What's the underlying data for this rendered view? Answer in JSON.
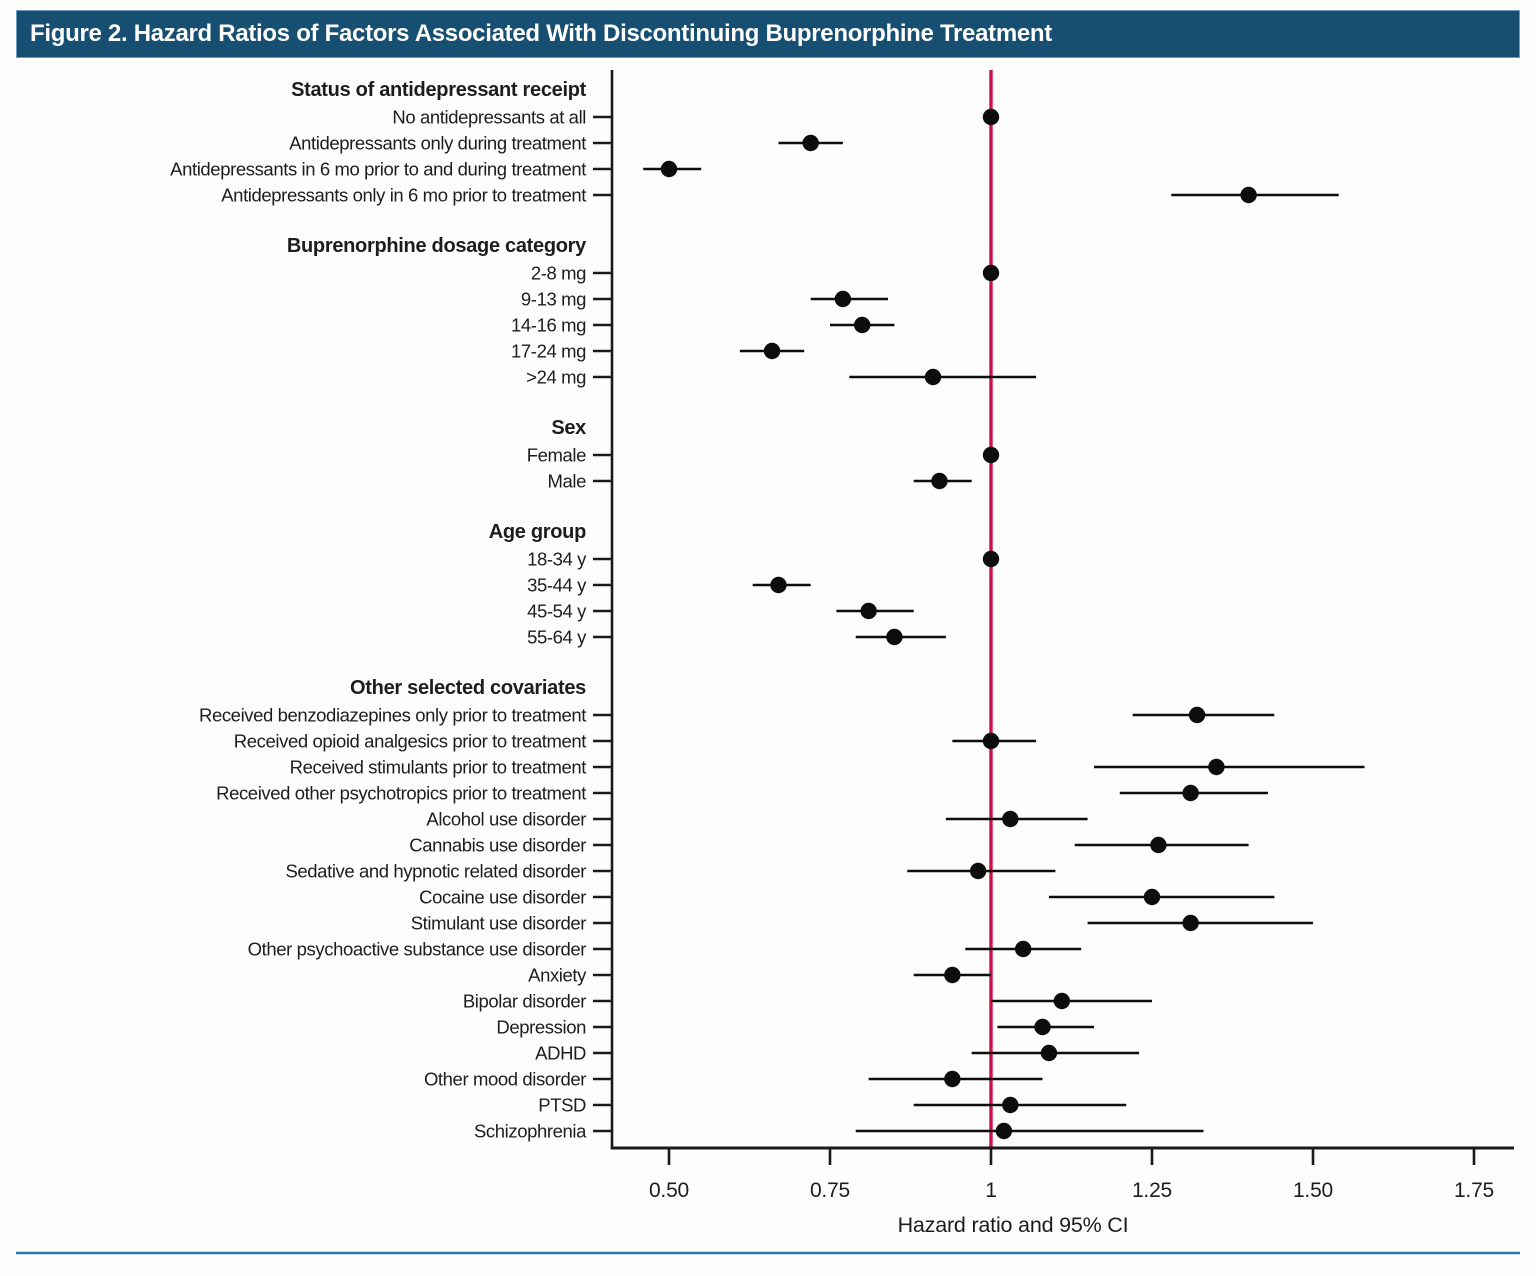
{
  "figure": {
    "title_bar": {
      "text": "Figure 2. Hazard Ratios of Factors Associated With Discontinuing Buprenorphine Treatment",
      "background": "#164f72",
      "text_color": "#ffffff"
    },
    "footer_rule_color": "#2b7ab2"
  },
  "chart_data": {
    "type": "forest",
    "title": "Hazard Ratios of Factors Associated With Discontinuing Buprenorphine Treatment",
    "xlabel": "Hazard ratio and 95% CI",
    "x_tick_labels": [
      "0.50",
      "0.75",
      "1",
      "1.25",
      "1.50",
      "1.75"
    ],
    "x_tick_values": [
      0.5,
      0.75,
      1.0,
      1.25,
      1.5,
      1.75
    ],
    "xlim": [
      0.41,
      1.81
    ],
    "grid": false,
    "legend": null,
    "reference_line": 1.0,
    "colors": {
      "reference_line": "#ce0f4b",
      "points": "#0d0d0d",
      "axis": "#1a1a1a"
    },
    "groups": [
      {
        "header": "Status of antidepressant receipt",
        "rows": [
          {
            "label": "No antidepressants at all",
            "hr": 1.0,
            "ci": null,
            "reference": true
          },
          {
            "label": "Antidepressants only during treatment",
            "hr": 0.72,
            "ci": [
              0.67,
              0.77
            ]
          },
          {
            "label": "Antidepressants in 6 mo prior to and during treatment",
            "hr": 0.5,
            "ci": [
              0.46,
              0.55
            ]
          },
          {
            "label": "Antidepressants only in 6 mo prior to treatment",
            "hr": 1.4,
            "ci": [
              1.28,
              1.54
            ]
          }
        ]
      },
      {
        "header": "Buprenorphine dosage category",
        "rows": [
          {
            "label": "2-8 mg",
            "hr": 1.0,
            "ci": null,
            "reference": true
          },
          {
            "label": "9-13 mg",
            "hr": 0.77,
            "ci": [
              0.72,
              0.84
            ]
          },
          {
            "label": "14-16 mg",
            "hr": 0.8,
            "ci": [
              0.75,
              0.85
            ]
          },
          {
            "label": "17-24 mg",
            "hr": 0.66,
            "ci": [
              0.61,
              0.71
            ]
          },
          {
            "label": ">24 mg",
            "hr": 0.91,
            "ci": [
              0.78,
              1.07
            ]
          }
        ]
      },
      {
        "header": "Sex",
        "rows": [
          {
            "label": "Female",
            "hr": 1.0,
            "ci": null,
            "reference": true
          },
          {
            "label": "Male",
            "hr": 0.92,
            "ci": [
              0.88,
              0.97
            ]
          }
        ]
      },
      {
        "header": "Age group",
        "rows": [
          {
            "label": "18-34 y",
            "hr": 1.0,
            "ci": null,
            "reference": true
          },
          {
            "label": "35-44 y",
            "hr": 0.67,
            "ci": [
              0.63,
              0.72
            ]
          },
          {
            "label": "45-54 y",
            "hr": 0.81,
            "ci": [
              0.76,
              0.88
            ]
          },
          {
            "label": "55-64 y",
            "hr": 0.85,
            "ci": [
              0.79,
              0.93
            ]
          }
        ]
      },
      {
        "header": "Other selected covariates",
        "rows": [
          {
            "label": "Received benzodiazepines only prior to treatment",
            "hr": 1.32,
            "ci": [
              1.22,
              1.44
            ]
          },
          {
            "label": "Received opioid analgesics prior to treatment",
            "hr": 1.0,
            "ci": [
              0.94,
              1.07
            ]
          },
          {
            "label": "Received stimulants prior to treatment",
            "hr": 1.35,
            "ci": [
              1.16,
              1.58
            ]
          },
          {
            "label": "Received other psychotropics prior to treatment",
            "hr": 1.31,
            "ci": [
              1.2,
              1.43
            ]
          },
          {
            "label": "Alcohol use disorder",
            "hr": 1.03,
            "ci": [
              0.93,
              1.15
            ]
          },
          {
            "label": "Cannabis use disorder",
            "hr": 1.26,
            "ci": [
              1.13,
              1.4
            ]
          },
          {
            "label": "Sedative and hypnotic related disorder",
            "hr": 0.98,
            "ci": [
              0.87,
              1.1
            ]
          },
          {
            "label": "Cocaine use disorder",
            "hr": 1.25,
            "ci": [
              1.09,
              1.44
            ]
          },
          {
            "label": "Stimulant use disorder",
            "hr": 1.31,
            "ci": [
              1.15,
              1.5
            ]
          },
          {
            "label": "Other psychoactive substance use disorder",
            "hr": 1.05,
            "ci": [
              0.96,
              1.14
            ]
          },
          {
            "label": "Anxiety",
            "hr": 0.94,
            "ci": [
              0.88,
              1.0
            ]
          },
          {
            "label": "Bipolar disorder",
            "hr": 1.11,
            "ci": [
              1.0,
              1.25
            ]
          },
          {
            "label": "Depression",
            "hr": 1.08,
            "ci": [
              1.01,
              1.16
            ]
          },
          {
            "label": "ADHD",
            "hr": 1.09,
            "ci": [
              0.97,
              1.23
            ]
          },
          {
            "label": "Other mood disorder",
            "hr": 0.94,
            "ci": [
              0.81,
              1.08
            ]
          },
          {
            "label": "PTSD",
            "hr": 1.03,
            "ci": [
              0.88,
              1.21
            ]
          },
          {
            "label": "Schizophrenia",
            "hr": 1.02,
            "ci": [
              0.79,
              1.33
            ]
          }
        ]
      }
    ]
  }
}
